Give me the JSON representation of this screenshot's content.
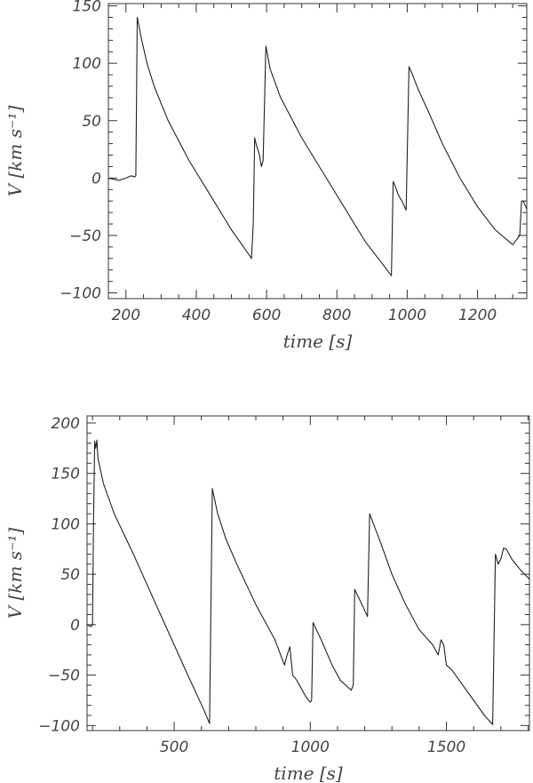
{
  "chart_data": [
    {
      "type": "line",
      "xlabel": "time [s]",
      "ylabel": "V [km s⁻¹]",
      "xlim": [
        150,
        1340
      ],
      "ylim": [
        -105,
        152
      ],
      "xticks": [
        200,
        400,
        600,
        800,
        1000,
        1200
      ],
      "xtick_labels": [
        "200",
        "400",
        "600",
        "800",
        "1000",
        "1200"
      ],
      "yticks": [
        -100,
        -50,
        0,
        50,
        100,
        150
      ],
      "ytick_labels": [
        "−100",
        "−50",
        "0",
        "50",
        "100",
        "150"
      ],
      "series": [
        {
          "x": [
            150,
            180,
            200,
            215,
            225,
            228,
            232,
            245,
            260,
            280,
            320,
            380,
            440,
            500,
            530,
            557,
            562,
            566,
            570,
            580,
            585,
            590,
            598,
            610,
            640,
            700,
            760,
            820,
            880,
            930,
            955,
            960,
            967,
            975,
            985,
            997,
            1005,
            1015,
            1030,
            1060,
            1100,
            1150,
            1200,
            1250,
            1300,
            1320,
            1325,
            1330,
            1340
          ],
          "y": [
            0,
            -2,
            0,
            2,
            1,
            2,
            140,
            120,
            100,
            80,
            50,
            15,
            -15,
            -45,
            -58,
            -70,
            -40,
            35,
            30,
            20,
            10,
            15,
            115,
            95,
            70,
            35,
            5,
            -25,
            -55,
            -75,
            -85,
            -3,
            -8,
            -15,
            -20,
            -28,
            97,
            90,
            78,
            58,
            30,
            0,
            -25,
            -45,
            -58,
            -50,
            -20,
            -20,
            -27
          ]
        }
      ]
    },
    {
      "type": "line",
      "xlabel": "time [s]",
      "ylabel": "V [km s⁻¹]",
      "xlim": [
        180,
        1805
      ],
      "ylim": [
        -105,
        207
      ],
      "xticks": [
        500,
        1000,
        1500
      ],
      "xtick_labels": [
        "500",
        "1000",
        "1500"
      ],
      "yticks": [
        -100,
        -50,
        0,
        50,
        100,
        150,
        200
      ],
      "ytick_labels": [
        "−100",
        "−50",
        "0",
        "50",
        "100",
        "150",
        "200"
      ],
      "series": [
        {
          "x": [
            180,
            195,
            200,
            204,
            208,
            212,
            216,
            220,
            240,
            280,
            350,
            450,
            550,
            610,
            630,
            640,
            660,
            690,
            730,
            800,
            870,
            905,
            915,
            925,
            935,
            950,
            985,
            1000,
            1005,
            1010,
            1040,
            1080,
            1110,
            1150,
            1158,
            1163,
            1190,
            1210,
            1218,
            1260,
            1300,
            1350,
            1400,
            1450,
            1470,
            1480,
            1490,
            1500,
            1520,
            1560,
            1600,
            1640,
            1670,
            1680,
            1690,
            1700,
            1710,
            1720,
            1740,
            1770,
            1805
          ],
          "y": [
            0,
            -2,
            0,
            110,
            182,
            175,
            183,
            165,
            140,
            110,
            70,
            10,
            -50,
            -85,
            -98,
            135,
            110,
            85,
            60,
            20,
            -15,
            -40,
            -30,
            -22,
            -50,
            -55,
            -72,
            -77,
            -75,
            2,
            -15,
            -40,
            -55,
            -65,
            -60,
            35,
            20,
            8,
            110,
            80,
            50,
            20,
            -5,
            -20,
            -30,
            -15,
            -20,
            -40,
            -45,
            -60,
            -75,
            -90,
            -99,
            70,
            60,
            65,
            76,
            75,
            65,
            55,
            45
          ]
        }
      ]
    }
  ]
}
